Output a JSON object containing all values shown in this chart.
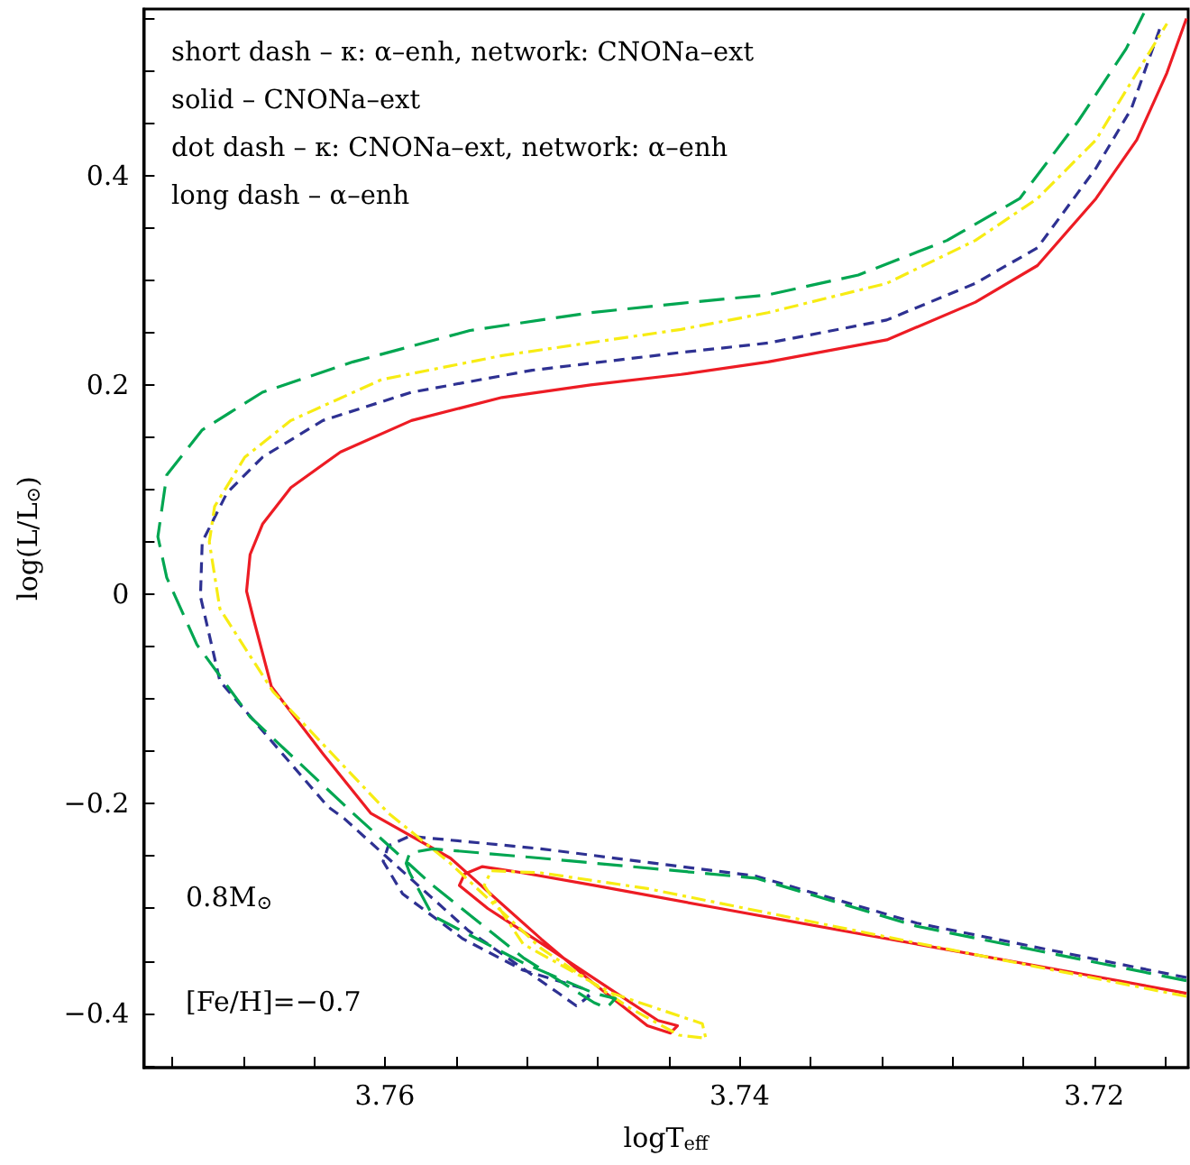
{
  "chart_data": {
    "type": "line",
    "xlabel": "logT$_{eff}$",
    "ylabel": "log(L/L$_{⊙}$)",
    "xlim": [
      3.7736,
      3.7147
    ],
    "ylim": [
      -0.452,
      0.559
    ],
    "xticks": [
      {
        "value": 3.772,
        "label": null
      },
      {
        "value": 3.768,
        "label": null
      },
      {
        "value": 3.764,
        "label": null
      },
      3.76,
      {
        "value": 3.756,
        "label": null
      },
      {
        "value": 3.752,
        "label": null
      },
      {
        "value": 3.748,
        "label": null
      },
      {
        "value": 3.744,
        "label": null
      },
      3.74,
      {
        "value": 3.736,
        "label": null
      },
      {
        "value": 3.732,
        "label": null
      },
      {
        "value": 3.728,
        "label": null
      },
      {
        "value": 3.724,
        "label": null
      },
      3.72,
      {
        "value": 3.716,
        "label": null
      }
    ],
    "yticks": [
      {
        "value": -0.45,
        "label": null
      },
      -0.4,
      {
        "value": -0.35,
        "label": null
      },
      {
        "value": -0.3,
        "label": null
      },
      {
        "value": -0.25,
        "label": null
      },
      -0.2,
      {
        "value": -0.15,
        "label": null
      },
      {
        "value": -0.1,
        "label": null
      },
      {
        "value": -0.05,
        "label": null
      },
      0,
      {
        "value": 0.05,
        "label": null
      },
      {
        "value": 0.1,
        "label": null
      },
      {
        "value": 0.15,
        "label": null
      },
      0.2,
      {
        "value": 0.25,
        "label": null
      },
      {
        "value": 0.3,
        "label": null
      },
      {
        "value": 0.35,
        "label": null
      },
      0.4,
      {
        "value": 0.45,
        "label": null
      },
      {
        "value": 0.5,
        "label": null
      },
      {
        "value": 0.55,
        "label": null
      }
    ],
    "grid": false,
    "marker": "none",
    "annotations": [
      "short dash – κ: α–enh, network: CNONa–ext",
      "solid – CNONa–ext",
      "dot dash – κ: CNONa–ext, network: α–enh",
      "long dash – α–enh",
      "0.8M$_{⊙}$",
      "[Fe/H]=−0.7"
    ],
    "series": [
      {
        "color": "#2e3192",
        "line_style": "dashed",
        "x": [
          3.7148,
          3.73,
          3.7391,
          3.7512,
          3.7586,
          3.7598,
          3.7601,
          3.759,
          3.7556,
          3.7522,
          3.7489,
          3.7485,
          3.7492,
          3.7502,
          3.7553,
          3.7593,
          3.7623,
          3.7632,
          3.7693,
          3.7704,
          3.7703,
          3.7689,
          3.7669,
          3.7635,
          3.7585,
          3.7517,
          3.7433,
          3.7384,
          3.7317,
          3.7267,
          3.7232,
          3.7199,
          3.7179,
          3.7162
        ],
        "values": [
          -0.366,
          -0.314,
          -0.269,
          -0.243,
          -0.231,
          -0.24,
          -0.255,
          -0.286,
          -0.329,
          -0.359,
          -0.376,
          -0.384,
          -0.393,
          -0.381,
          -0.321,
          -0.26,
          -0.214,
          -0.203,
          -0.083,
          -0.002,
          0.05,
          0.097,
          0.131,
          0.166,
          0.193,
          0.214,
          0.231,
          0.24,
          0.262,
          0.297,
          0.331,
          0.407,
          0.464,
          0.545
        ]
      },
      {
        "color": "#ed1c24",
        "line_style": "solid",
        "x": [
          3.7148,
          3.7209,
          3.731,
          3.7411,
          3.7482,
          3.7522,
          3.7545,
          3.7555,
          3.7558,
          3.7542,
          3.7512,
          3.7472,
          3.7446,
          3.7435,
          3.7439,
          3.7452,
          3.7482,
          3.7512,
          3.7563,
          3.7608,
          3.7635,
          3.7664,
          3.7674,
          3.7678,
          3.7676,
          3.7669,
          3.7653,
          3.7625,
          3.7585,
          3.7534,
          3.7484,
          3.7433,
          3.7384,
          3.7317,
          3.7267,
          3.7232,
          3.7199,
          3.7176,
          3.7159,
          3.7148
        ],
        "values": [
          -0.381,
          -0.362,
          -0.331,
          -0.3,
          -0.278,
          -0.266,
          -0.26,
          -0.267,
          -0.278,
          -0.3,
          -0.333,
          -0.378,
          -0.407,
          -0.412,
          -0.419,
          -0.412,
          -0.372,
          -0.329,
          -0.252,
          -0.209,
          -0.152,
          -0.088,
          -0.024,
          0.003,
          0.038,
          0.067,
          0.102,
          0.136,
          0.166,
          0.188,
          0.2,
          0.21,
          0.222,
          0.243,
          0.279,
          0.314,
          0.378,
          0.434,
          0.498,
          0.55
        ]
      },
      {
        "color": "#f7ec13",
        "line_style": "dotted",
        "x": [
          3.7148,
          3.73,
          3.7452,
          3.7512,
          3.754,
          3.7544,
          3.7522,
          3.7472,
          3.7421,
          3.7419,
          3.7434,
          3.7462,
          3.7512,
          3.7563,
          3.7598,
          3.7663,
          3.7693,
          3.7699,
          3.7696,
          3.7679,
          3.7653,
          3.7602,
          3.7534,
          3.7433,
          3.7384,
          3.7317,
          3.7267,
          3.7232,
          3.7199,
          3.7176,
          3.7159
        ],
        "values": [
          -0.384,
          -0.333,
          -0.281,
          -0.266,
          -0.264,
          -0.278,
          -0.334,
          -0.381,
          -0.41,
          -0.424,
          -0.421,
          -0.395,
          -0.338,
          -0.257,
          -0.209,
          -0.093,
          -0.014,
          0.05,
          0.084,
          0.131,
          0.166,
          0.205,
          0.228,
          0.253,
          0.269,
          0.297,
          0.338,
          0.378,
          0.434,
          0.498,
          0.545
        ]
      },
      {
        "color": "#00a651",
        "line_style": "dashed",
        "x": [
          3.7148,
          3.73,
          3.7391,
          3.7512,
          3.7573,
          3.7586,
          3.7588,
          3.7586,
          3.7573,
          3.7522,
          3.7482,
          3.747,
          3.7475,
          3.7482,
          3.7522,
          3.7573,
          3.7618,
          3.7676,
          3.7706,
          3.7723,
          3.7728,
          3.7723,
          3.7703,
          3.7669,
          3.7618,
          3.7552,
          3.7484,
          3.7433,
          3.7384,
          3.7333,
          3.7283,
          3.7242,
          3.7209,
          3.7182,
          3.7172
        ],
        "values": [
          -0.369,
          -0.317,
          -0.271,
          -0.252,
          -0.243,
          -0.247,
          -0.257,
          -0.266,
          -0.307,
          -0.352,
          -0.381,
          -0.386,
          -0.395,
          -0.39,
          -0.347,
          -0.278,
          -0.209,
          -0.117,
          -0.048,
          0.016,
          0.055,
          0.114,
          0.157,
          0.193,
          0.222,
          0.252,
          0.269,
          0.278,
          0.286,
          0.305,
          0.338,
          0.378,
          0.452,
          0.521,
          0.555
        ]
      }
    ]
  }
}
